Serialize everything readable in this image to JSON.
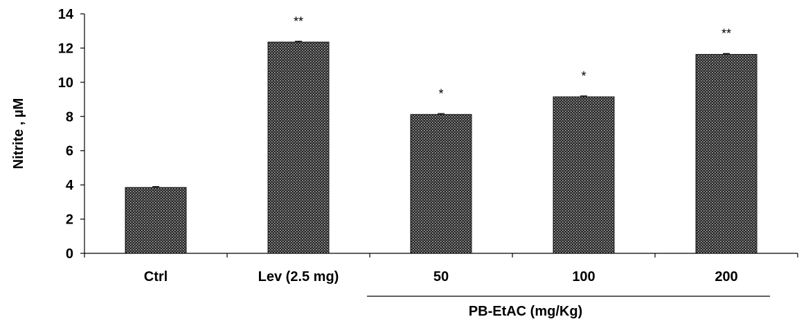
{
  "chart_data": {
    "type": "bar",
    "title": "",
    "xlabel": "",
    "ylabel": "Nitrite , µM",
    "ylim": [
      0,
      14
    ],
    "yticks": [
      0,
      2,
      4,
      6,
      8,
      10,
      12,
      14
    ],
    "categories": [
      "Ctrl",
      "Lev (2.5 mg)",
      "50",
      "100",
      "200"
    ],
    "values": [
      3.85,
      12.35,
      8.12,
      9.15,
      11.63
    ],
    "errors": [
      0.05,
      0.05,
      0.05,
      0.05,
      0.05
    ],
    "significance": [
      "",
      "**",
      "*",
      "*",
      "**"
    ],
    "group": {
      "label": "PB-EtAC (mg/Kg)",
      "categories": [
        "50",
        "100",
        "200"
      ]
    },
    "grid": false,
    "legend": "none",
    "colors": {
      "bar_fill": "#2a2a2a",
      "bar_pattern_dot": "#bdbdbd",
      "axis": "#000000"
    }
  }
}
